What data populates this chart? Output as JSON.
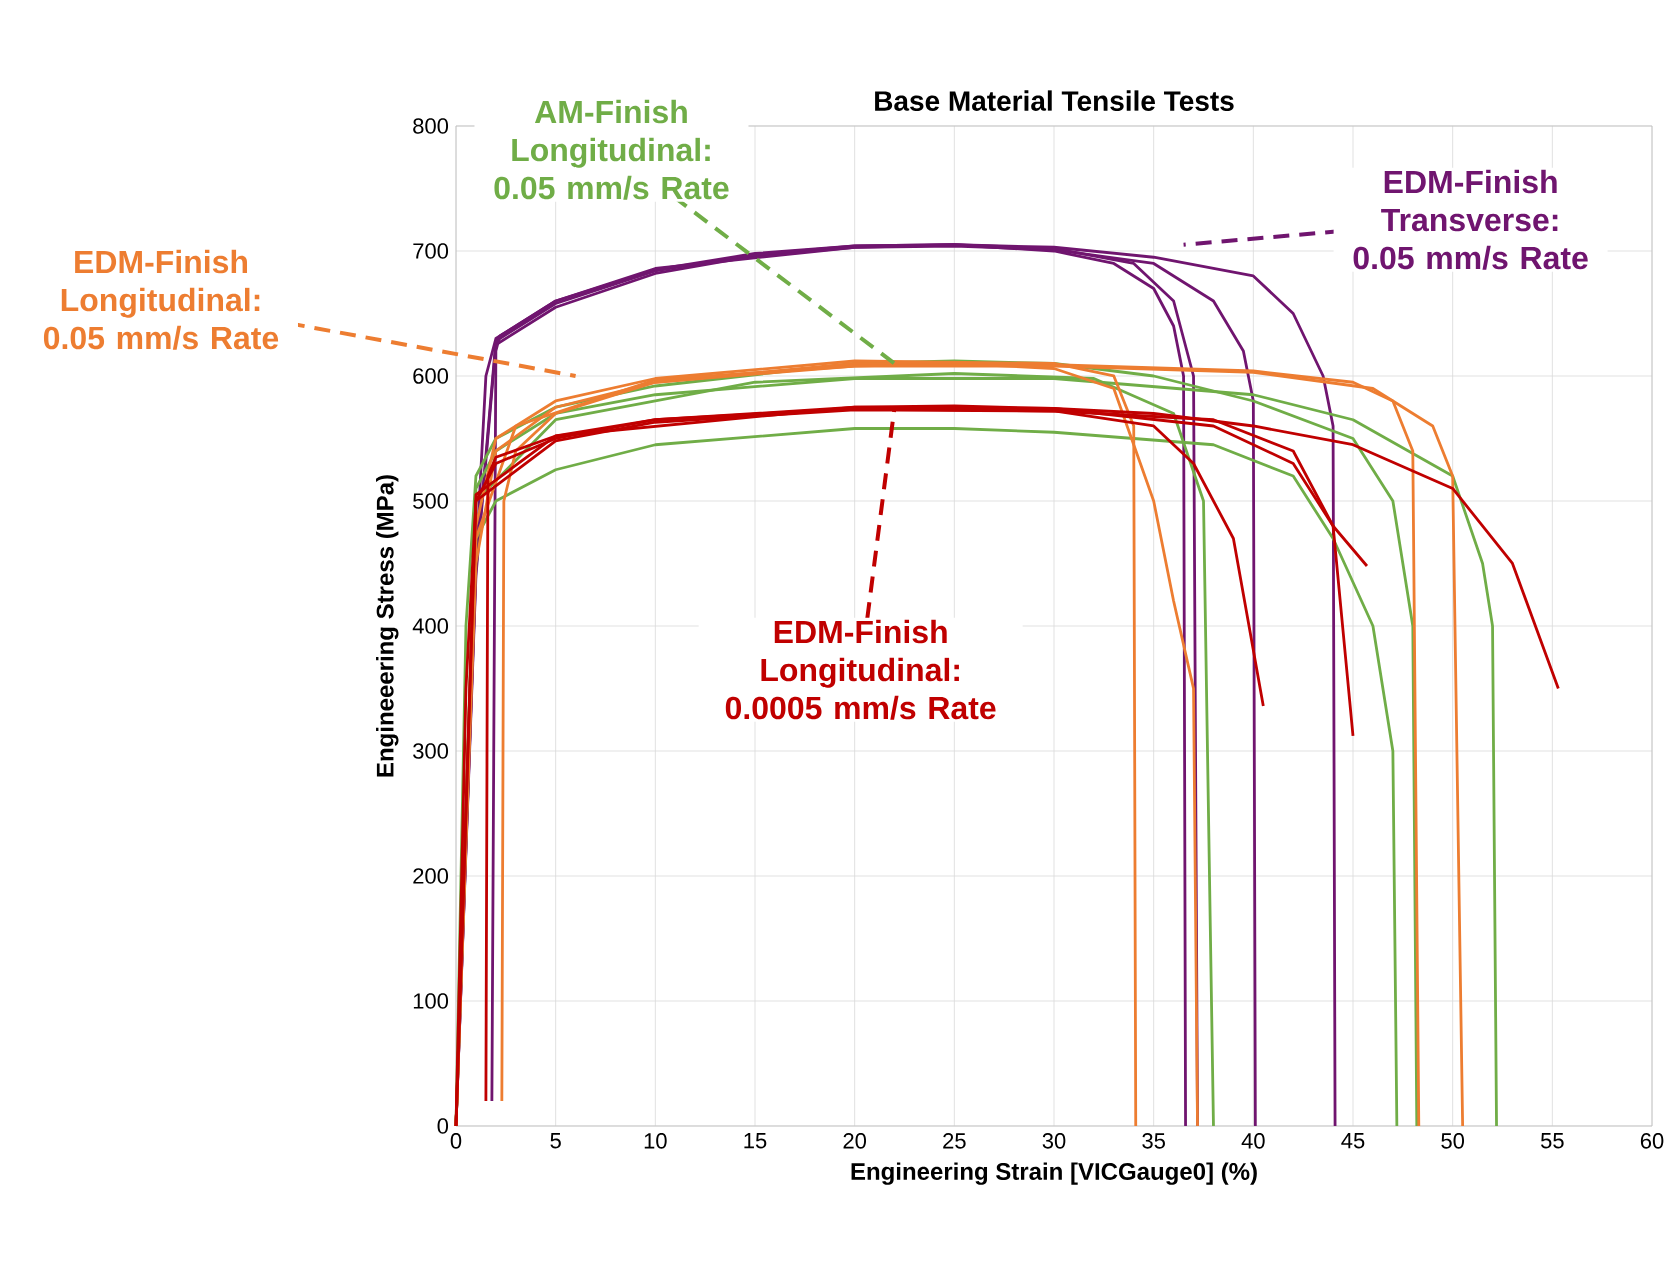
{
  "chart_data": {
    "type": "line",
    "title": "Base Material Tensile Tests",
    "xlabel": "Engineering Strain [VICGauge0] (%)",
    "ylabel": "Engineeering Stress (MPa)",
    "xlim": [
      0,
      60
    ],
    "ylim": [
      0,
      800
    ],
    "xticks": [
      0,
      5,
      10,
      15,
      20,
      25,
      30,
      35,
      40,
      45,
      50,
      55,
      60
    ],
    "yticks": [
      0,
      100,
      200,
      300,
      400,
      500,
      600,
      700,
      800
    ],
    "grid": true,
    "marker": "none",
    "line_style": "solid",
    "series": [
      {
        "name": "EDM-Finish Transverse: 0.05 mm/s Rate",
        "color": "#70156f",
        "x": [
          0,
          1,
          1.5,
          2,
          5,
          10,
          15,
          20,
          25,
          30,
          33,
          35,
          36,
          36.5,
          36.6
        ],
        "values": [
          0,
          450,
          600,
          630,
          660,
          685,
          698,
          704,
          705,
          700,
          690,
          670,
          640,
          600,
          0
        ]
      },
      {
        "color": "#70156f",
        "x": [
          0,
          1,
          2,
          5,
          10,
          15,
          20,
          25,
          30,
          35,
          38,
          39.5,
          40,
          40.1
        ],
        "values": [
          0,
          440,
          625,
          655,
          682,
          696,
          703,
          704,
          701,
          690,
          660,
          620,
          580,
          0
        ]
      },
      {
        "color": "#70156f",
        "x": [
          0,
          1,
          2,
          5,
          10,
          15,
          20,
          25,
          30,
          35,
          40,
          42,
          43.5,
          44,
          44.1
        ],
        "values": [
          0,
          445,
          628,
          658,
          684,
          697,
          704,
          705,
          703,
          695,
          680,
          650,
          600,
          560,
          0
        ]
      },
      {
        "color": "#70156f",
        "x": [
          1.8,
          2,
          2.2,
          5,
          10,
          20,
          25,
          30,
          34,
          36,
          37,
          37.2
        ],
        "values": [
          20,
          620,
          632,
          660,
          686,
          703,
          705,
          702,
          690,
          660,
          600,
          0
        ]
      },
      {
        "name": "AM-Finish Longitudinal: 0.05 mm/s Rate",
        "color": "#70ad47",
        "x": [
          0,
          0.5,
          1,
          2,
          5,
          10,
          20,
          25,
          30,
          35,
          40,
          45,
          47,
          48,
          48.2
        ],
        "values": [
          0,
          400,
          520,
          550,
          575,
          592,
          610,
          612,
          610,
          600,
          580,
          550,
          500,
          400,
          0
        ]
      },
      {
        "color": "#70ad47",
        "x": [
          0,
          1,
          2,
          5,
          10,
          20,
          25,
          30,
          38,
          42,
          44,
          46,
          47,
          47.2
        ],
        "values": [
          0,
          470,
          500,
          525,
          545,
          558,
          558,
          555,
          545,
          520,
          470,
          400,
          300,
          0
        ]
      },
      {
        "color": "#70ad47",
        "x": [
          0,
          1,
          2,
          5,
          10,
          20,
          30,
          40,
          45,
          50,
          51.5,
          52,
          52.2
        ],
        "values": [
          0,
          510,
          540,
          570,
          585,
          598,
          598,
          585,
          565,
          520,
          450,
          400,
          0
        ]
      },
      {
        "color": "#70ad47",
        "x": [
          0,
          1,
          5,
          15,
          25,
          32,
          36,
          37.5,
          38
        ],
        "values": [
          0,
          500,
          565,
          595,
          602,
          598,
          570,
          500,
          0
        ]
      },
      {
        "name": "EDM-Finish Longitudinal: 0.05 mm/s Rate",
        "color": "#ed7d31",
        "x": [
          0,
          1,
          2,
          5,
          10,
          20,
          25,
          30,
          33,
          35,
          36,
          37,
          37.2
        ],
        "values": [
          0,
          450,
          540,
          575,
          595,
          608,
          610,
          606,
          590,
          500,
          420,
          350,
          0
        ]
      },
      {
        "color": "#ed7d31",
        "x": [
          2.3,
          2.4,
          3,
          5,
          10,
          20,
          30,
          40,
          45,
          47,
          48,
          48.3
        ],
        "values": [
          20,
          500,
          540,
          570,
          595,
          610,
          609,
          604,
          595,
          580,
          540,
          0
        ]
      },
      {
        "color": "#ed7d31",
        "x": [
          0,
          1,
          2,
          5,
          10,
          20,
          30,
          33,
          34,
          34.1
        ],
        "values": [
          0,
          480,
          550,
          580,
          598,
          612,
          610,
          600,
          560,
          0
        ]
      },
      {
        "color": "#ed7d31",
        "x": [
          0,
          1,
          3,
          10,
          20,
          30,
          40,
          46,
          49,
          50,
          50.5
        ],
        "values": [
          0,
          470,
          560,
          597,
          608,
          608,
          603,
          590,
          560,
          520,
          0
        ]
      },
      {
        "name": "EDM-Finish Longitudinal: 0.0005 mm/s Rate",
        "color": "#c00000",
        "x": [
          0,
          0.5,
          1,
          2,
          5,
          10,
          20,
          25,
          30,
          35,
          40,
          45,
          50,
          53,
          55.3
        ],
        "values": [
          0,
          350,
          500,
          530,
          550,
          565,
          575,
          576,
          574,
          570,
          560,
          545,
          510,
          450,
          350
        ]
      },
      {
        "color": "#c00000",
        "x": [
          1.5,
          1.6,
          2,
          5,
          10,
          20,
          30,
          35,
          37,
          39,
          40.5
        ],
        "values": [
          20,
          520,
          535,
          552,
          565,
          574,
          572,
          560,
          530,
          470,
          336
        ]
      },
      {
        "color": "#c00000",
        "x": [
          0,
          1,
          5,
          10,
          20,
          30,
          38,
          42,
          44,
          45
        ],
        "values": [
          0,
          500,
          548,
          563,
          573,
          572,
          565,
          540,
          480,
          312
        ]
      },
      {
        "color": "#c00000",
        "x": [
          0,
          1,
          5,
          20,
          30,
          38,
          42,
          44,
          45.7
        ],
        "values": [
          0,
          505,
          552,
          575,
          574,
          560,
          530,
          480,
          448
        ]
      }
    ]
  }
}
